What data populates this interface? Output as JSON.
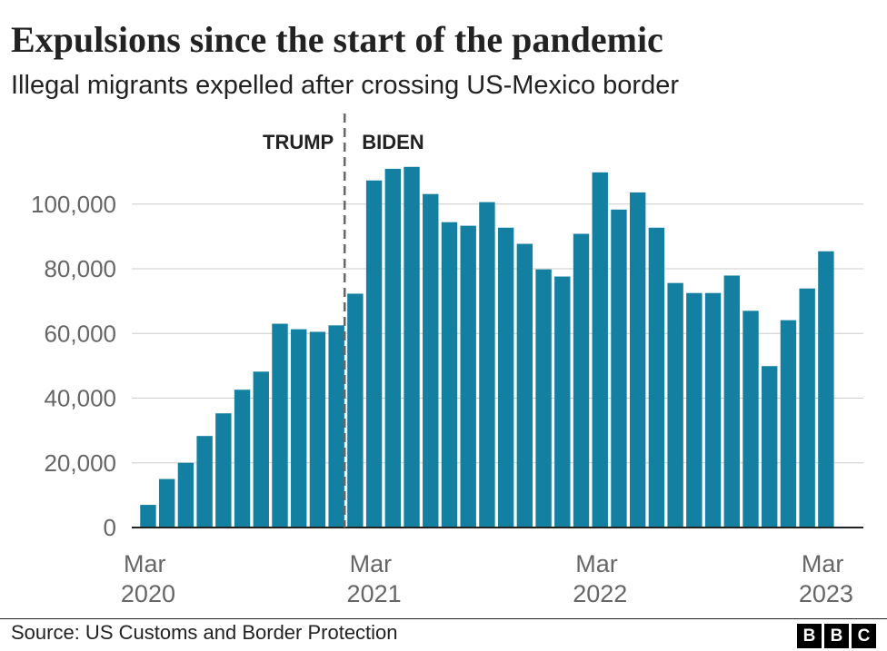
{
  "chart_data": {
    "type": "bar",
    "title": "Expulsions since the start of the pandemic",
    "subtitle": "Illegal migrants expelled after crossing US-Mexico border",
    "annotations": [
      "TRUMP",
      "BIDEN"
    ],
    "categories": [
      "Mar 2020",
      null,
      null,
      null,
      null,
      null,
      null,
      null,
      null,
      null,
      null,
      null,
      "Mar 2021",
      null,
      null,
      null,
      null,
      null,
      null,
      null,
      null,
      null,
      null,
      null,
      "Mar 2022",
      null,
      null,
      null,
      null,
      null,
      null,
      null,
      null,
      null,
      null,
      null,
      "Mar 2023"
    ],
    "values": [
      7000,
      15000,
      20000,
      28300,
      35300,
      42600,
      48200,
      63000,
      61300,
      60500,
      62500,
      72300,
      107300,
      110900,
      111500,
      103100,
      94400,
      93300,
      100600,
      92700,
      87700,
      79800,
      77600,
      90800,
      109800,
      98300,
      103600,
      92700,
      75600,
      72500,
      72500,
      77900,
      67000,
      49900,
      64100,
      73900,
      85400
    ],
    "color": "#1380a1",
    "ylim": [
      0,
      112000
    ],
    "yticks": [
      0,
      {
        "value": 20000,
        "label": "20,000"
      },
      {
        "value": 40000,
        "label": "40,000"
      },
      {
        "value": 60000,
        "label": "60,000"
      },
      {
        "value": 80000,
        "label": "80,000"
      },
      {
        "value": 100000,
        "label": "100,000"
      }
    ],
    "grid": true,
    "source": "Source: US Customs and Border Protection",
    "logo": [
      "B",
      "B",
      "C"
    ]
  }
}
